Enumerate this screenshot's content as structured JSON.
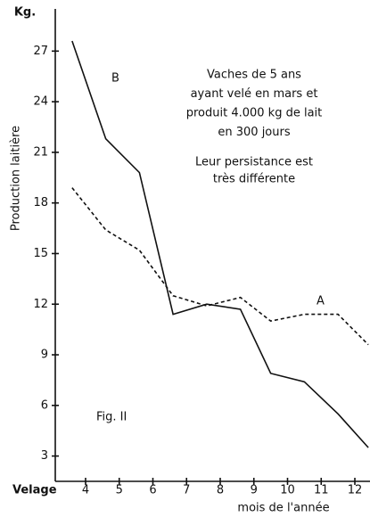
{
  "chart_data": {
    "type": "line",
    "y_unit": "Kg.",
    "ylabel": "Production laitière",
    "xlabel": "mois de l'année",
    "x_start_label": "Velage",
    "annotations": [
      "Vaches de 5 ans",
      "ayant velé en mars et",
      "produit 4.000 kg de lait",
      "en 300 jours",
      "Leur persistance est",
      "très différente"
    ],
    "figure_label": "Fig. II",
    "x": [
      3.6,
      4.6,
      5.6,
      6.6,
      7.6,
      8.6,
      9.5,
      10.5,
      11.5,
      12.4
    ],
    "series": [
      {
        "name": "A",
        "color": "#111111",
        "dashed": true,
        "values": [
          18.9,
          16.4,
          15.2,
          12.5,
          11.9,
          12.4,
          11,
          11.4,
          11.4,
          9.6
        ]
      },
      {
        "name": "B",
        "color": "#111111",
        "dashed": false,
        "values": [
          27.6,
          21.8,
          19.8,
          11.4,
          12,
          11.7,
          7.9,
          7.4,
          5.5,
          3.5
        ]
      }
    ],
    "xlim": [
      3.1,
      12.45
    ],
    "ylim": [
      1.5,
      29.5
    ],
    "xticks": [
      4,
      5,
      6,
      7,
      8,
      9,
      10,
      11,
      12
    ],
    "yticks": [
      3,
      6,
      9,
      12,
      15,
      18,
      21,
      24,
      27
    ]
  }
}
